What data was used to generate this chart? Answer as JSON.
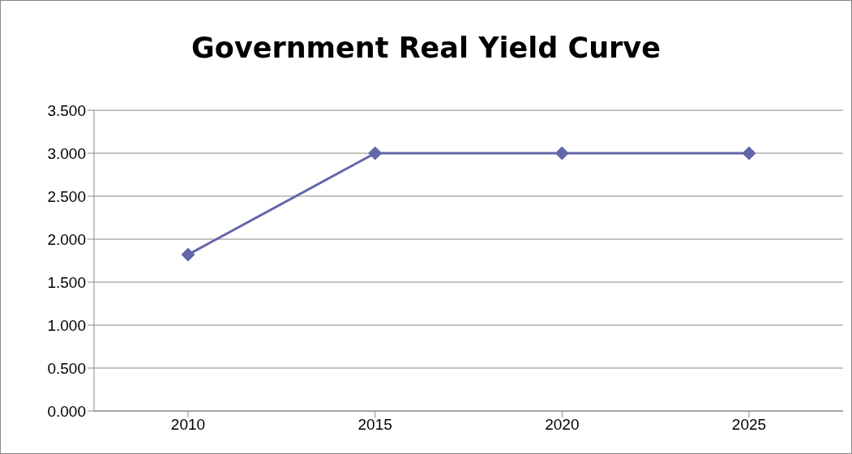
{
  "chart_data": {
    "type": "line",
    "title": "Government Real Yield Curve",
    "categories": [
      "2010",
      "2015",
      "2020",
      "2025"
    ],
    "series": [
      {
        "color": "#6366a8",
        "values": [
          1.82,
          3.0,
          3.0,
          3.0
        ]
      }
    ],
    "ylim": [
      0,
      3.5
    ],
    "yticks": [
      {
        "value": 0,
        "label": "0.000"
      },
      {
        "value": 0.5,
        "label": "0.500"
      },
      {
        "value": 1,
        "label": "1.000"
      },
      {
        "value": 1.5,
        "label": "1.500"
      },
      {
        "value": 2,
        "label": "2.000"
      },
      {
        "value": 2.5,
        "label": "2.500"
      },
      {
        "value": 3,
        "label": "3.000"
      },
      {
        "value": 3.5,
        "label": "3.500"
      }
    ],
    "grid": "y",
    "marker": "diamond",
    "line_style": "solid"
  }
}
